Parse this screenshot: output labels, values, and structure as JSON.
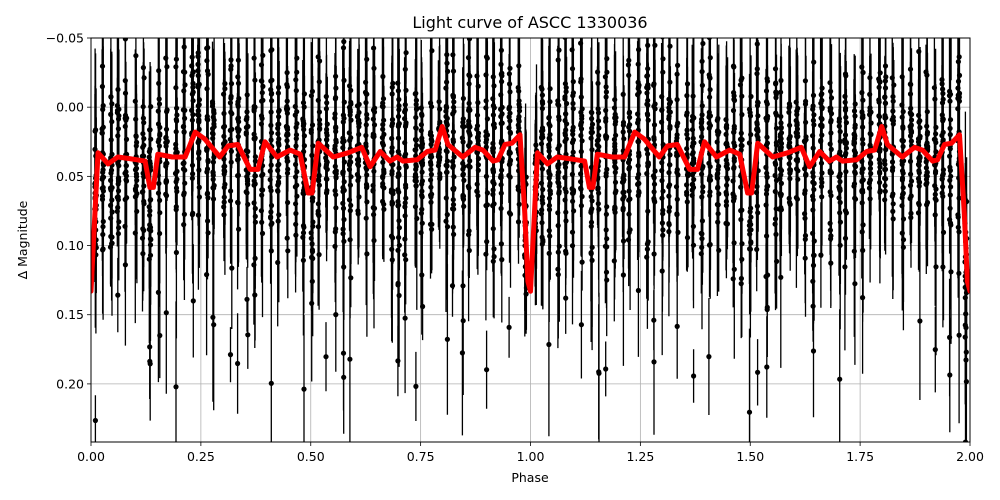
{
  "chart_data": {
    "type": "scatter",
    "title": "Light curve of ASCC 1330036",
    "xlabel": "Phase",
    "ylabel": "Δ Magnitude",
    "xlim": [
      0.0,
      2.0
    ],
    "ylim": [
      0.242,
      -0.05
    ],
    "y_inverted": true,
    "grid": true,
    "legend": null,
    "xticks": [
      0.0,
      0.25,
      0.5,
      0.75,
      1.0,
      1.25,
      1.5,
      1.75,
      2.0
    ],
    "xtick_labels": [
      "0.00",
      "0.25",
      "0.50",
      "0.75",
      "1.00",
      "1.25",
      "1.50",
      "1.75",
      "2.00"
    ],
    "yticks": [
      -0.05,
      0.0,
      0.05,
      0.1,
      0.15,
      0.2
    ],
    "ytick_labels": [
      "−0.05",
      "0.00",
      "0.05",
      "0.10",
      "0.15",
      "0.20"
    ],
    "series": [
      {
        "name": "observations",
        "kind": "errorbar-scatter",
        "color": "#000000",
        "marker": "circle",
        "description": "Phase-folded photometric points with vertical error bars, clustered in ~110 vertical streaks across phase 0–2, centred on the model with scatter of roughly ±0.1 mag and extreme points reaching -0.05 and 0.24",
        "columns_per_period": 55,
        "scatter_sigma": 0.045,
        "errorbar_mean": 0.035,
        "points_per_column": 22,
        "seed": 1330036
      },
      {
        "name": "model",
        "kind": "line",
        "color": "#ff0000",
        "linewidth": 5,
        "period": 1.0,
        "phase": [
          0.0,
          0.016,
          0.039,
          0.061,
          0.084,
          0.105,
          0.123,
          0.134,
          0.142,
          0.152,
          0.185,
          0.214,
          0.237,
          0.259,
          0.293,
          0.312,
          0.334,
          0.362,
          0.38,
          0.396,
          0.423,
          0.453,
          0.476,
          0.494,
          0.503,
          0.517,
          0.551,
          0.585,
          0.616,
          0.635,
          0.658,
          0.68,
          0.696,
          0.71,
          0.742,
          0.765,
          0.783,
          0.799,
          0.812,
          0.846,
          0.874,
          0.892,
          0.915,
          0.926,
          0.942,
          0.958,
          0.976,
          0.987,
          0.994,
          1.0
        ],
        "magnitude": [
          0.133,
          0.033,
          0.041,
          0.036,
          0.037,
          0.038,
          0.039,
          0.058,
          0.058,
          0.034,
          0.036,
          0.036,
          0.018,
          0.023,
          0.036,
          0.028,
          0.027,
          0.045,
          0.045,
          0.025,
          0.036,
          0.031,
          0.034,
          0.062,
          0.062,
          0.026,
          0.036,
          0.033,
          0.029,
          0.043,
          0.032,
          0.039,
          0.036,
          0.039,
          0.038,
          0.032,
          0.031,
          0.014,
          0.027,
          0.036,
          0.029,
          0.031,
          0.039,
          0.038,
          0.027,
          0.026,
          0.02,
          0.077,
          0.126,
          0.133
        ]
      }
    ]
  }
}
